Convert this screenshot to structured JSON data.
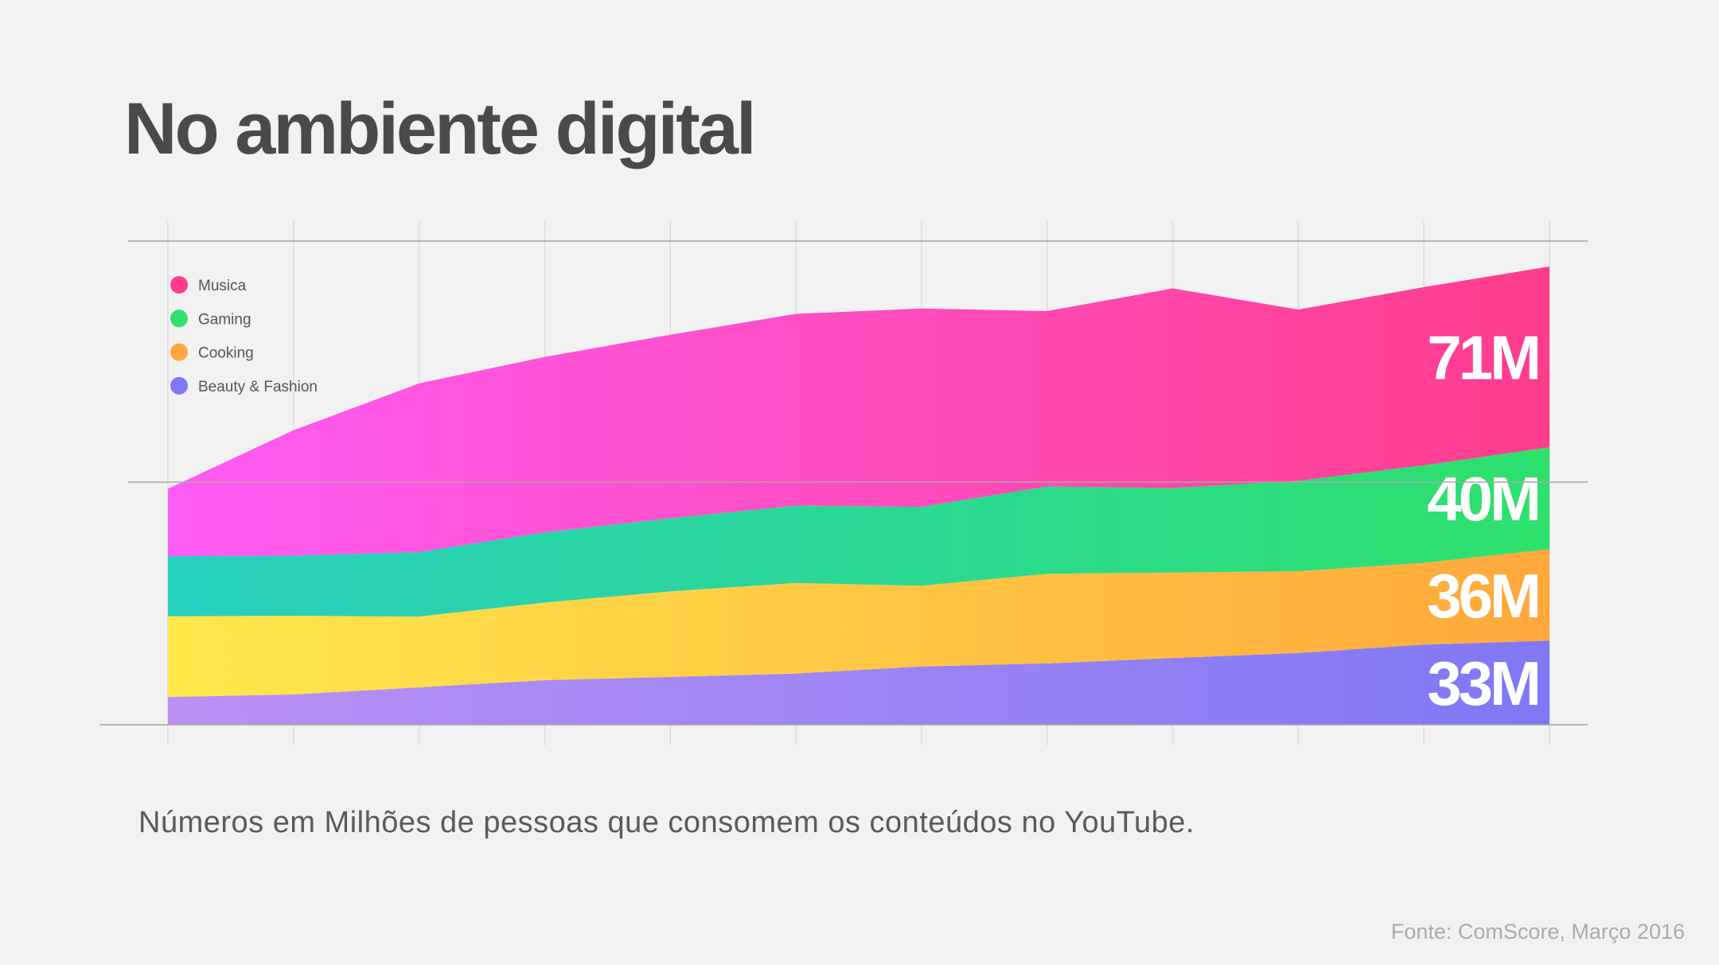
{
  "chart_data": {
    "type": "stacked_area",
    "title": "No ambiente digital",
    "subtitle": "Números em Milhões de pessoas que consomem os conteúdos no YouTube.",
    "source": "Fonte:  ComScore, Março 2016",
    "categories": [
      null,
      null,
      null,
      null,
      null,
      null,
      null,
      null,
      null,
      null,
      null,
      null
    ],
    "ylim": [
      0,
      190
    ],
    "series": [
      {
        "name": "Musica",
        "color": "#ff3d8c",
        "gradient": [
          "#ff5cf5",
          "#ff3d8c"
        ],
        "values": [
          26.5,
          49.3,
          66.3,
          68.9,
          72.1,
          75.3,
          77.9,
          68.9,
          78.4,
          67.3,
          70,
          71
        ],
        "value_labels": [
          null,
          null,
          null,
          null,
          null,
          null,
          null,
          null,
          null,
          null,
          null,
          "71M"
        ]
      },
      {
        "name": "Gaming",
        "color": "#2ee06b",
        "gradient": [
          "#27cfc0",
          "#2ee06b"
        ],
        "values": [
          23.6,
          23.6,
          25.3,
          27.6,
          28.7,
          30.4,
          31,
          34.3,
          33.2,
          35.5,
          38.3,
          40
        ],
        "value_labels": [
          null,
          null,
          null,
          null,
          null,
          null,
          null,
          null,
          null,
          null,
          null,
          "40M"
        ]
      },
      {
        "name": "Cooking",
        "color": "#ffa83c",
        "gradient": [
          "#ffe84a",
          "#ffa83c"
        ],
        "values": [
          31.7,
          30.9,
          27.8,
          30.5,
          33.6,
          35.6,
          31.7,
          35.2,
          33.6,
          32.1,
          32.1,
          36
        ],
        "value_labels": [
          null,
          null,
          null,
          null,
          null,
          null,
          null,
          null,
          null,
          null,
          null,
          "36M"
        ]
      },
      {
        "name": "Beauty & Fashion",
        "color": "#8078f5",
        "gradient": [
          "#bb90f5",
          "#8078f5"
        ],
        "values": [
          10.9,
          11.9,
          14.7,
          17.5,
          18.8,
          20.1,
          22.9,
          24.1,
          26.2,
          28.2,
          31.5,
          33
        ],
        "value_labels": [
          null,
          null,
          null,
          null,
          null,
          null,
          null,
          null,
          null,
          null,
          null,
          "33M"
        ]
      }
    ]
  }
}
